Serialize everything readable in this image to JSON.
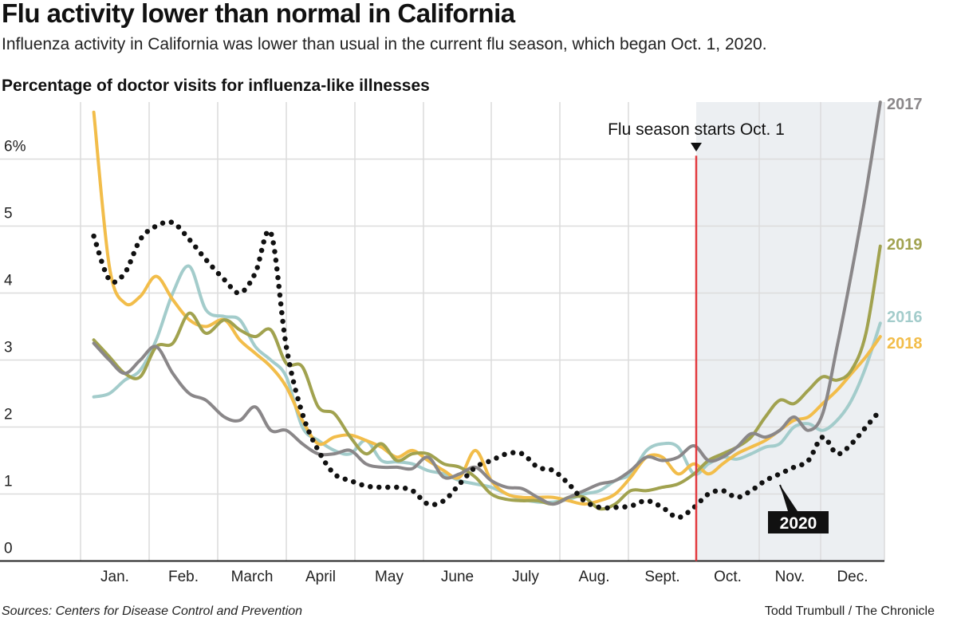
{
  "header": {
    "title": "Flu activity lower than normal in California",
    "subtitle": "Influenza activity in California was lower than usual in the current flu season, which began Oct. 1, 2020."
  },
  "footer": {
    "source": "Sources: Centers for Disease Control and Prevention",
    "credit": "Todd Trumbull / The Chronicle"
  },
  "chart_data": {
    "type": "line",
    "title": "Percentage of doctor visits for influenza-like illnesses",
    "xlabel": "",
    "ylabel": "",
    "ylim": [
      0,
      6.8
    ],
    "yticks": [
      0,
      1,
      2,
      3,
      4,
      5,
      6
    ],
    "ytick_labels": [
      "0",
      "1",
      "2",
      "3",
      "4",
      "5",
      "6%"
    ],
    "xtick_labels": [
      "Jan.",
      "Feb.",
      "March",
      "April",
      "May",
      "June",
      "July",
      "Aug.",
      "Sept.",
      "Oct.",
      "Nov.",
      "Dec."
    ],
    "grid": true,
    "annotation": {
      "label": "Flu season starts Oct. 1",
      "date": "10-01",
      "color": "#e23a3f",
      "shaded_after": true,
      "shade_color": "#eceff2"
    },
    "x": [
      "01-07",
      "01-14",
      "01-21",
      "01-28",
      "02-04",
      "02-11",
      "02-18",
      "02-25",
      "03-04",
      "03-11",
      "03-18",
      "03-25",
      "04-01",
      "04-08",
      "04-15",
      "04-22",
      "04-29",
      "05-06",
      "05-13",
      "05-20",
      "05-27",
      "06-03",
      "06-10",
      "06-17",
      "06-24",
      "07-01",
      "07-08",
      "07-15",
      "07-22",
      "07-29",
      "08-05",
      "08-12",
      "08-19",
      "08-26",
      "09-02",
      "09-09",
      "09-16",
      "09-23",
      "09-30",
      "10-07",
      "10-14",
      "10-21",
      "10-28",
      "11-04",
      "11-11",
      "11-18",
      "11-25",
      "12-02",
      "12-09",
      "12-16",
      "12-23",
      "12-30"
    ],
    "series": [
      {
        "name": "2016",
        "color": "#a3cccb",
        "style": "solid",
        "values": [
          2.45,
          2.5,
          2.7,
          2.85,
          3.3,
          4.0,
          4.4,
          3.75,
          3.65,
          3.6,
          3.2,
          3.0,
          2.75,
          2.0,
          1.8,
          1.65,
          1.6,
          1.8,
          1.5,
          1.48,
          1.45,
          1.35,
          1.3,
          1.2,
          1.15,
          1.1,
          1.0,
          0.92,
          0.88,
          0.88,
          0.92,
          1.0,
          1.05,
          1.2,
          1.3,
          1.65,
          1.75,
          1.7,
          1.3,
          1.45,
          1.55,
          1.52,
          1.6,
          1.7,
          1.75,
          2.0,
          2.05,
          1.95,
          2.1,
          2.4,
          2.9,
          3.55
        ]
      },
      {
        "name": "2018",
        "color": "#f2bd4a",
        "style": "solid",
        "values": [
          6.7,
          4.4,
          3.85,
          3.95,
          4.25,
          3.9,
          3.6,
          3.5,
          3.6,
          3.3,
          3.1,
          2.9,
          2.6,
          2.1,
          1.75,
          1.85,
          1.88,
          1.8,
          1.7,
          1.55,
          1.65,
          1.5,
          1.35,
          1.25,
          1.65,
          1.2,
          1.0,
          0.95,
          0.95,
          0.95,
          0.9,
          0.85,
          0.9,
          1.0,
          1.25,
          1.55,
          1.55,
          1.3,
          1.45,
          1.3,
          1.45,
          1.6,
          1.7,
          1.8,
          1.95,
          2.1,
          2.15,
          2.35,
          2.55,
          2.8,
          3.05,
          3.35
        ]
      },
      {
        "name": "2019",
        "color": "#a1a24f",
        "style": "solid",
        "values": [
          3.3,
          3.05,
          2.8,
          2.75,
          3.2,
          3.25,
          3.7,
          3.4,
          3.6,
          3.45,
          3.35,
          3.45,
          2.95,
          2.9,
          2.3,
          2.2,
          1.85,
          1.6,
          1.75,
          1.5,
          1.6,
          1.6,
          1.45,
          1.4,
          1.25,
          1.0,
          0.92,
          0.9,
          0.9,
          0.85,
          0.95,
          0.95,
          0.78,
          0.85,
          1.05,
          1.05,
          1.1,
          1.15,
          1.3,
          1.5,
          1.6,
          1.7,
          1.85,
          2.15,
          2.4,
          2.35,
          2.55,
          2.75,
          2.7,
          2.85,
          3.4,
          4.7
        ]
      },
      {
        "name": "2017",
        "color": "#8a8789",
        "style": "solid",
        "values": [
          3.25,
          3.0,
          2.8,
          3.0,
          3.2,
          2.8,
          2.5,
          2.4,
          2.15,
          2.1,
          2.3,
          1.95,
          1.95,
          1.75,
          1.6,
          1.6,
          1.65,
          1.45,
          1.4,
          1.4,
          1.38,
          1.55,
          1.25,
          1.3,
          1.4,
          1.2,
          1.1,
          1.08,
          0.95,
          0.85,
          0.95,
          1.05,
          1.15,
          1.2,
          1.35,
          1.55,
          1.5,
          1.55,
          1.72,
          1.5,
          1.55,
          1.7,
          1.9,
          1.85,
          1.95,
          2.15,
          1.95,
          2.2,
          3.2,
          4.3,
          5.5,
          6.85
        ]
      },
      {
        "name": "2020",
        "color": "#111111",
        "style": "dotted",
        "values": [
          4.85,
          4.2,
          4.3,
          4.8,
          5.0,
          5.05,
          4.8,
          4.5,
          4.2,
          4.0,
          4.3,
          4.9,
          3.2,
          2.2,
          1.65,
          1.3,
          1.2,
          1.12,
          1.1,
          1.1,
          1.05,
          0.85,
          0.9,
          1.15,
          1.4,
          1.5,
          1.6,
          1.6,
          1.4,
          1.35,
          1.15,
          0.9,
          0.8,
          0.8,
          0.82,
          0.9,
          0.8,
          0.65,
          0.8,
          1.0,
          1.05,
          0.95,
          1.05,
          1.2,
          1.3,
          1.4,
          1.5,
          1.85,
          1.6,
          1.75,
          2.0,
          2.25
        ]
      }
    ]
  }
}
